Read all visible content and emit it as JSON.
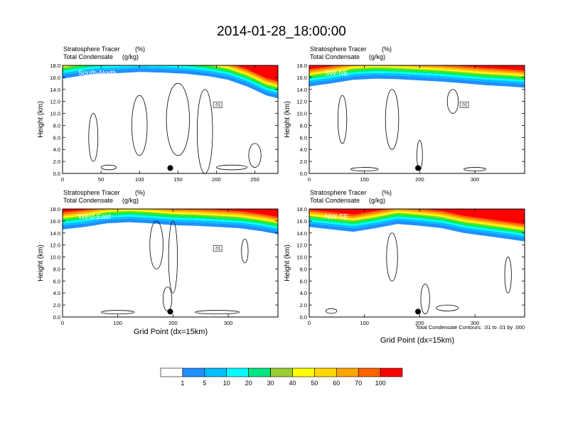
{
  "title": "2014-01-28_18:00:00",
  "subtitle_left_1": "Stratosphere Tracer",
  "subtitle_unit_1": "(%)",
  "subtitle_left_2": "Total Condensate",
  "subtitle_unit_2": "(g/kg)",
  "ylabel": "Height (km)",
  "xlabel": "Grid Point (dx=15km)",
  "contour_note": "Total Condensate Contours: .01 to .01 by .000",
  "y_ticks": [
    "0.0",
    "2.0",
    "4.0",
    "6.0",
    "8.0",
    "10.0",
    "12.0",
    "14.0",
    "16.0",
    "18.0"
  ],
  "colors": {
    "levels": [
      "#ffffff",
      "#1e90ff",
      "#00bfff",
      "#00ffff",
      "#00e680",
      "#00ff00",
      "#9acd32",
      "#ffff00",
      "#ffd700",
      "#ffa500",
      "#ff6000",
      "#ff0000"
    ],
    "marker": "#000000",
    "contour": "#000000"
  },
  "colorbar": {
    "labels": [
      "1",
      "5",
      "10",
      "20",
      "30",
      "40",
      "50",
      "60",
      "70",
      "100"
    ]
  },
  "chart_data": [
    {
      "type": "heatmap",
      "panel_label": "South-North",
      "xlim": [
        0,
        280
      ],
      "ylim": [
        0,
        18
      ],
      "x_ticks": [
        0,
        50,
        100,
        150,
        200,
        250
      ],
      "marker_x": 140,
      "contour_label": ".01",
      "tracer_base_km": [
        [
          0,
          15.8
        ],
        [
          20,
          16.2
        ],
        [
          45,
          16.6
        ],
        [
          70,
          16.7
        ],
        [
          100,
          16.9
        ],
        [
          130,
          16.8
        ],
        [
          160,
          16.6
        ],
        [
          190,
          16.2
        ],
        [
          215,
          15.6
        ],
        [
          240,
          14.5
        ],
        [
          265,
          13.0
        ],
        [
          280,
          12.5
        ]
      ]
    },
    {
      "type": "heatmap",
      "panel_label": "SW-NE",
      "xlim": [
        0,
        390
      ],
      "ylim": [
        0,
        18
      ],
      "x_ticks": [
        0,
        100,
        200,
        300
      ],
      "marker_x": 197,
      "contour_label": ".01",
      "tracer_base_km": [
        [
          0,
          14.5
        ],
        [
          40,
          15.0
        ],
        [
          80,
          15.6
        ],
        [
          120,
          15.8
        ],
        [
          160,
          15.7
        ],
        [
          200,
          15.5
        ],
        [
          240,
          15.3
        ],
        [
          280,
          15.0
        ],
        [
          320,
          14.7
        ],
        [
          360,
          14.5
        ],
        [
          390,
          14.3
        ]
      ]
    },
    {
      "type": "heatmap",
      "panel_label": "West-East",
      "xlim": [
        0,
        390
      ],
      "ylim": [
        0,
        18
      ],
      "x_ticks": [
        0,
        100,
        200,
        300
      ],
      "marker_x": 195,
      "contour_label": ".01",
      "tracer_base_km": [
        [
          0,
          14.6
        ],
        [
          40,
          15.0
        ],
        [
          80,
          15.6
        ],
        [
          120,
          15.8
        ],
        [
          160,
          15.6
        ],
        [
          200,
          15.3
        ],
        [
          240,
          15.2
        ],
        [
          280,
          15.0
        ],
        [
          320,
          14.8
        ],
        [
          360,
          14.3
        ],
        [
          390,
          13.8
        ]
      ]
    },
    {
      "type": "heatmap",
      "panel_label": "NW-SE",
      "xlim": [
        0,
        390
      ],
      "ylim": [
        0,
        18
      ],
      "x_ticks": [
        0,
        100,
        200,
        300
      ],
      "marker_x": 197,
      "contour_label": "",
      "tracer_base_km": [
        [
          0,
          15.0
        ],
        [
          40,
          14.6
        ],
        [
          80,
          14.2
        ],
        [
          120,
          14.8
        ],
        [
          160,
          15.5
        ],
        [
          200,
          15.2
        ],
        [
          240,
          14.8
        ],
        [
          280,
          14.0
        ],
        [
          320,
          13.5
        ],
        [
          360,
          13.0
        ],
        [
          390,
          12.6
        ]
      ]
    }
  ]
}
